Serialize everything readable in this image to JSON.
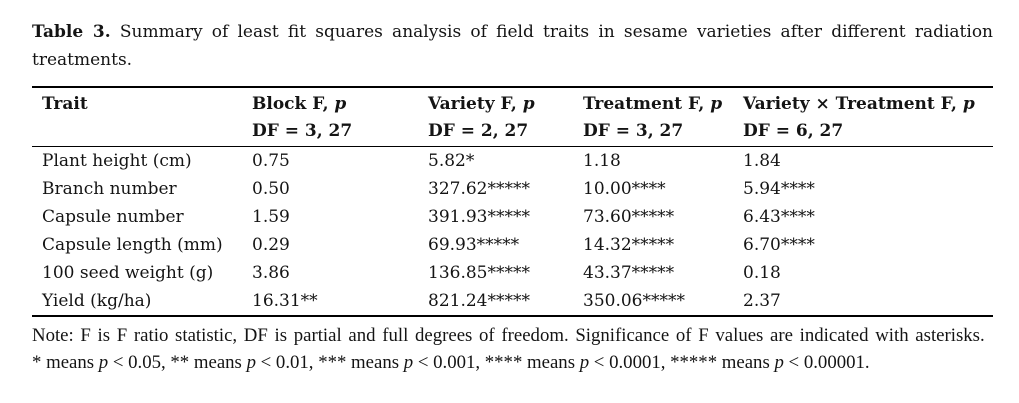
{
  "caption": {
    "label": "Table 3.",
    "text": " Summary of least fit squares analysis of field traits in sesame varieties after different radiation treatments."
  },
  "table": {
    "columns": [
      {
        "title": [
          {
            "t": "Trait"
          }
        ],
        "df": ""
      },
      {
        "title": [
          {
            "t": "Block F, "
          },
          {
            "t": "p",
            "i": true
          }
        ],
        "df": "DF = 3, 27"
      },
      {
        "title": [
          {
            "t": "Variety F, "
          },
          {
            "t": "p",
            "i": true
          }
        ],
        "df": "DF = 2, 27"
      },
      {
        "title": [
          {
            "t": "Treatment F, "
          },
          {
            "t": "p",
            "i": true
          }
        ],
        "df": "DF = 3, 27"
      },
      {
        "title": [
          {
            "t": "Variety × Treatment F, "
          },
          {
            "t": "p",
            "i": true
          }
        ],
        "df": "DF = 6, 27"
      }
    ],
    "rows": [
      {
        "trait": "Plant height (cm)",
        "values": [
          "0.75",
          "5.82*",
          "1.18",
          "1.84"
        ]
      },
      {
        "trait": "Branch number",
        "values": [
          "0.50",
          "327.62*****",
          "10.00****",
          "5.94****"
        ]
      },
      {
        "trait": "Capsule number",
        "values": [
          "1.59",
          "391.93*****",
          "73.60*****",
          "6.43****"
        ]
      },
      {
        "trait": "Capsule length (mm)",
        "values": [
          "0.29",
          "69.93*****",
          "14.32*****",
          "6.70****"
        ]
      },
      {
        "trait": "100 seed weight (g)",
        "values": [
          "3.86",
          "136.85*****",
          "43.37*****",
          "0.18"
        ]
      },
      {
        "trait": "Yield (kg/ha)",
        "values": [
          "16.31**",
          "821.24*****",
          "350.06*****",
          "2.37"
        ]
      }
    ]
  },
  "notes": {
    "line1": "Note: F is F ratio statistic, DF is partial and full degrees of freedom. Significance of F values are indicated with asterisks.",
    "line2_segments": [
      {
        "t": "* means "
      },
      {
        "t": "p",
        "i": true
      },
      {
        "t": " < 0.05, ** means "
      },
      {
        "t": "p",
        "i": true
      },
      {
        "t": " < 0.01, *** means "
      },
      {
        "t": "p",
        "i": true
      },
      {
        "t": " < 0.001, **** means "
      },
      {
        "t": "p",
        "i": true
      },
      {
        "t": " < 0.0001, ***** means "
      },
      {
        "t": "p",
        "i": true
      },
      {
        "t": " < 0.00001."
      }
    ]
  }
}
